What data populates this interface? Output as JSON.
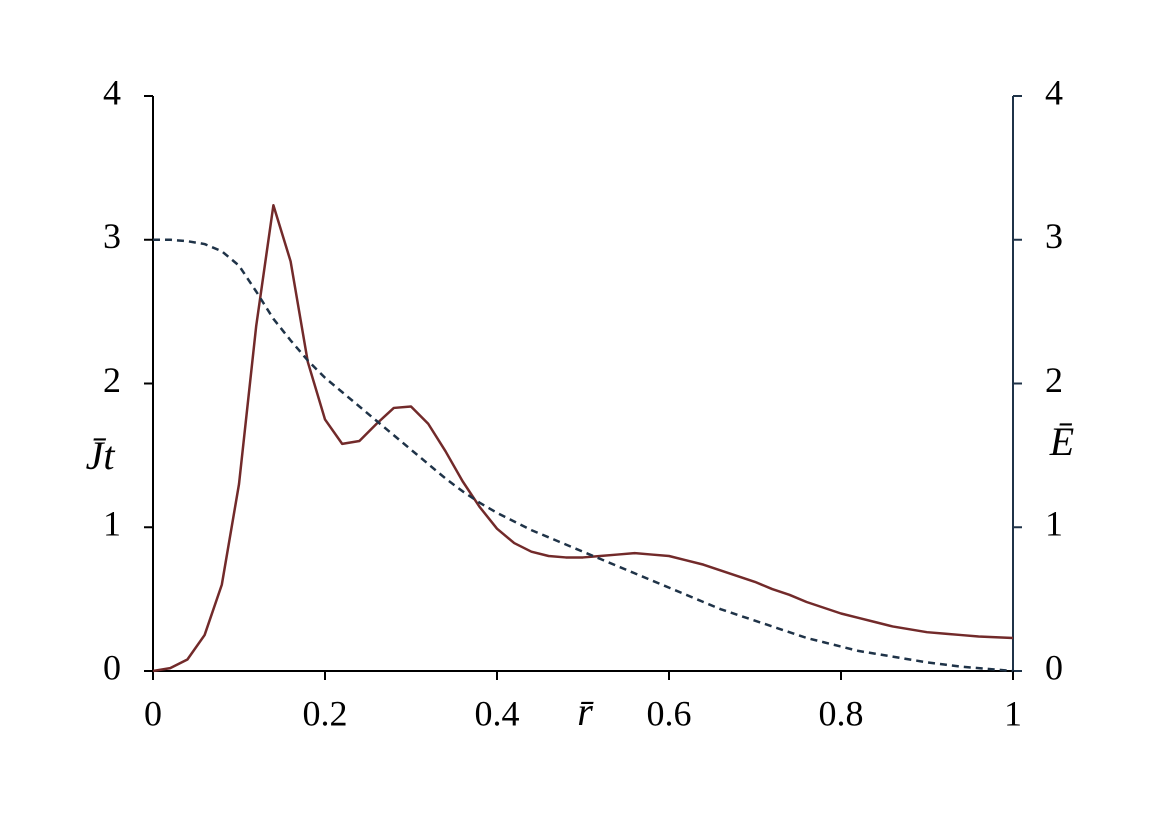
{
  "chart_data": {
    "type": "line",
    "x_label": "r̄",
    "y_label": "J̄t",
    "y2_label": "Ē",
    "x": [
      0,
      0.02,
      0.04,
      0.06,
      0.08,
      0.1,
      0.12,
      0.14,
      0.16,
      0.18,
      0.2,
      0.22,
      0.24,
      0.26,
      0.28,
      0.3,
      0.32,
      0.34,
      0.36,
      0.38,
      0.4,
      0.42,
      0.44,
      0.46,
      0.48,
      0.5,
      0.52,
      0.54,
      0.56,
      0.58,
      0.6,
      0.62,
      0.64,
      0.66,
      0.68,
      0.7,
      0.72,
      0.74,
      0.76,
      0.78,
      0.8,
      0.82,
      0.84,
      0.86,
      0.88,
      0.9,
      0.92,
      0.94,
      0.96,
      0.98,
      1
    ],
    "series": [
      {
        "color": "#722a2a",
        "dash": "none",
        "values": [
          0,
          0.02,
          0.08,
          0.25,
          0.6,
          1.3,
          2.4,
          3.24,
          2.85,
          2.15,
          1.75,
          1.58,
          1.6,
          1.72,
          1.83,
          1.84,
          1.72,
          1.53,
          1.32,
          1.14,
          0.99,
          0.89,
          0.83,
          0.8,
          0.79,
          0.79,
          0.8,
          0.81,
          0.82,
          0.81,
          0.8,
          0.77,
          0.74,
          0.7,
          0.66,
          0.62,
          0.57,
          0.53,
          0.48,
          0.44,
          0.4,
          0.37,
          0.34,
          0.31,
          0.29,
          0.27,
          0.26,
          0.25,
          0.24,
          0.235,
          0.23
        ]
      },
      {
        "color": "#1f3348",
        "dash": "7 5",
        "axis": "y2",
        "values": [
          3,
          3,
          2.99,
          2.97,
          2.92,
          2.82,
          2.64,
          2.45,
          2.3,
          2.16,
          2.04,
          1.94,
          1.84,
          1.74,
          1.64,
          1.54,
          1.44,
          1.34,
          1.25,
          1.17,
          1.1,
          1.04,
          0.98,
          0.93,
          0.88,
          0.83,
          0.78,
          0.73,
          0.68,
          0.63,
          0.58,
          0.53,
          0.48,
          0.43,
          0.39,
          0.35,
          0.31,
          0.27,
          0.23,
          0.2,
          0.17,
          0.14,
          0.12,
          0.1,
          0.08,
          0.06,
          0.045,
          0.03,
          0.02,
          0.01,
          0
        ]
      }
    ],
    "xlim": [
      0,
      1
    ],
    "xticks": [
      0,
      0.2,
      0.4,
      0.6,
      0.8,
      1
    ],
    "ylim": [
      0,
      4
    ],
    "yticks": [
      0,
      1,
      2,
      3,
      4
    ],
    "y2lim": [
      0,
      4
    ],
    "y2ticks": [
      0,
      1,
      2,
      3,
      4
    ],
    "grid": false
  }
}
